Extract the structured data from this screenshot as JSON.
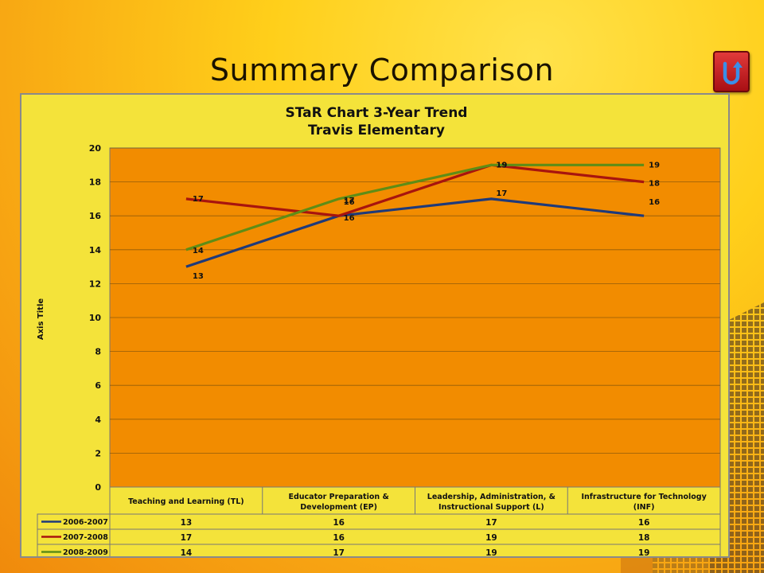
{
  "slide": {
    "title": "Summary Comparison"
  },
  "nav": {
    "back_icon": "u-turn-back-icon"
  },
  "colors": {
    "plot_bg": "#f28c00",
    "frame_bg": "#f4e33a",
    "series": [
      "#1f3a7a",
      "#a8140e",
      "#5e8d16"
    ]
  },
  "chart_data": {
    "type": "line",
    "title": "STaR Chart 3-Year Trend",
    "subtitle": "Travis Elementary",
    "xlabel": "",
    "ylabel": "Axis Title",
    "ylim": [
      0,
      20
    ],
    "yticks": [
      0,
      2,
      4,
      6,
      8,
      10,
      12,
      14,
      16,
      18,
      20
    ],
    "grid": true,
    "legend": "data-table-below",
    "categories": [
      "Teaching and Learning (TL)",
      "Educator Preparation & Development (EP)",
      "Leadership, Administration, & Instructional Support (L)",
      "Infrastructure for Technology (INF)"
    ],
    "category_lines": [
      [
        "Teaching and Learning (TL)"
      ],
      [
        "Educator Preparation &",
        "Development (EP)"
      ],
      [
        "Leadership, Administration, &",
        "Instructional Support (L)"
      ],
      [
        "Infrastructure for Technology",
        "(INF)"
      ]
    ],
    "series": [
      {
        "name": "2006-2007",
        "values": [
          13,
          16,
          17,
          16
        ]
      },
      {
        "name": "2007-2008",
        "values": [
          17,
          16,
          19,
          18
        ]
      },
      {
        "name": "2008-2009",
        "values": [
          14,
          17,
          19,
          19
        ]
      }
    ]
  }
}
